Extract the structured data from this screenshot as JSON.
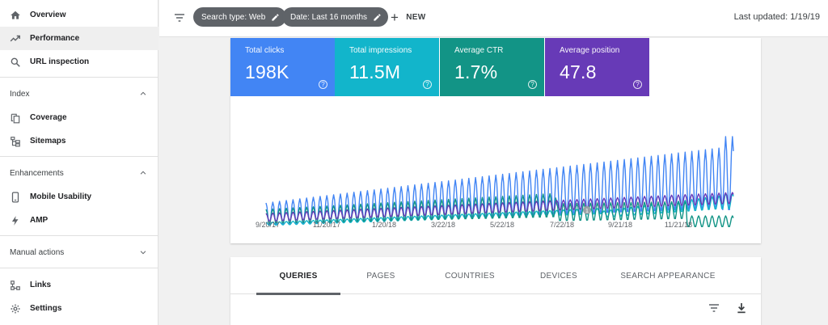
{
  "sidebar": {
    "items_top": [
      {
        "label": "Overview",
        "icon": "home-icon"
      },
      {
        "label": "Performance",
        "icon": "trending-up-icon",
        "active": true
      },
      {
        "label": "URL inspection",
        "icon": "search-icon"
      }
    ],
    "sections": [
      {
        "title": "Index",
        "expanded": true,
        "items": [
          {
            "label": "Coverage",
            "icon": "copy-icon"
          },
          {
            "label": "Sitemaps",
            "icon": "sitemap-icon"
          }
        ]
      },
      {
        "title": "Enhancements",
        "expanded": true,
        "items": [
          {
            "label": "Mobile Usability",
            "icon": "smartphone-icon"
          },
          {
            "label": "AMP",
            "icon": "bolt-icon"
          }
        ]
      },
      {
        "title": "Manual actions",
        "expanded": false,
        "items": []
      }
    ],
    "items_bottom": [
      {
        "label": "Links",
        "icon": "links-icon"
      },
      {
        "label": "Settings",
        "icon": "gear-icon"
      }
    ]
  },
  "topbar": {
    "chips": [
      {
        "label": "Search type: Web"
      },
      {
        "label": "Date: Last 16 months"
      }
    ],
    "new_label": "NEW",
    "last_updated": "Last updated: 1/19/19"
  },
  "metrics": [
    {
      "label": "Total clicks",
      "value": "198K",
      "color": "#4285f4"
    },
    {
      "label": "Total impressions",
      "value": "11.5M",
      "color": "#12b5cb"
    },
    {
      "label": "Average CTR",
      "value": "1.7%",
      "color": "#129486"
    },
    {
      "label": "Average position",
      "value": "47.8",
      "color": "#673ab7"
    }
  ],
  "chart_data": {
    "type": "line",
    "x_tick_labels": [
      "9/20/17",
      "11/20/17",
      "1/20/18",
      "3/22/18",
      "5/22/18",
      "7/22/18",
      "9/21/18",
      "11/21/18"
    ],
    "annotation_marker": "1",
    "series": [
      {
        "color": "#4285f4"
      },
      {
        "color": "#12b5cb"
      },
      {
        "color": "#129486"
      },
      {
        "color": "#673ab7"
      }
    ]
  },
  "tabs": [
    {
      "label": "QUERIES",
      "active": true
    },
    {
      "label": "PAGES"
    },
    {
      "label": "COUNTRIES"
    },
    {
      "label": "DEVICES"
    },
    {
      "label": "SEARCH APPEARANCE"
    }
  ]
}
